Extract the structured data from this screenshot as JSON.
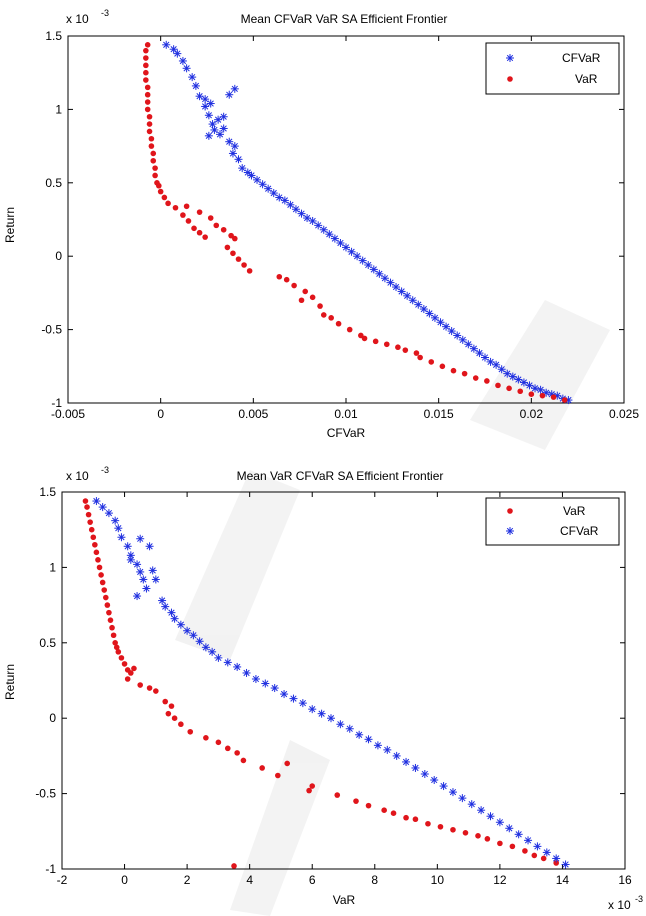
{
  "chart_data": [
    {
      "type": "scatter",
      "title": "Mean CFVaR VaR  SA Efficient Frontier",
      "xlabel": "CFVaR",
      "ylabel": "Return",
      "y_exponent_label": "x 10",
      "y_exponent_power": "-3",
      "x_exponent_label": "",
      "x_exponent_power": "",
      "xlim": [
        -0.005,
        0.025
      ],
      "ylim": [
        -1,
        1.5
      ],
      "xticks": [
        -0.005,
        0,
        0.005,
        0.01,
        0.015,
        0.02,
        0.025
      ],
      "xtick_labels": [
        "-0.005",
        "0",
        "0.005",
        "0.01",
        "0.015",
        "0.02",
        "0.025"
      ],
      "yticks": [
        -1,
        -0.5,
        0,
        0.5,
        1,
        1.5
      ],
      "ytick_labels": [
        "-1",
        "-0.5",
        "0",
        "0.5",
        "1",
        "1.5"
      ],
      "grid": false,
      "legend_position": "top-right",
      "series": [
        {
          "name": "CFVaR",
          "marker": "star",
          "color": "#1f2fe0",
          "x": [
            0.0003,
            0.0007,
            0.0009,
            0.0012,
            0.0014,
            0.0017,
            0.0019,
            0.0021,
            0.0024,
            0.0026,
            0.0028,
            0.0029,
            0.0026,
            0.0024,
            0.0027,
            0.0031,
            0.0034,
            0.0037,
            0.004,
            0.0032,
            0.0034,
            0.0037,
            0.004,
            0.0039,
            0.0042,
            0.0044,
            0.0047,
            0.0049,
            0.0052,
            0.0055,
            0.0058,
            0.0061,
            0.0064,
            0.0067,
            0.007,
            0.0073,
            0.0076,
            0.0079,
            0.0082,
            0.0085,
            0.0088,
            0.0091,
            0.0094,
            0.0097,
            0.01,
            0.0103,
            0.0106,
            0.0109,
            0.0112,
            0.0115,
            0.0118,
            0.0121,
            0.0124,
            0.0127,
            0.013,
            0.0133,
            0.0136,
            0.0139,
            0.0142,
            0.0145,
            0.0148,
            0.0151,
            0.0154,
            0.0157,
            0.016,
            0.0163,
            0.0166,
            0.0169,
            0.0172,
            0.0175,
            0.0178,
            0.0181,
            0.0184,
            0.0187,
            0.019,
            0.0193,
            0.0196,
            0.0199,
            0.0202,
            0.0205,
            0.0208,
            0.0211,
            0.0214,
            0.0217,
            0.022
          ],
          "y": [
            1.44,
            1.41,
            1.38,
            1.33,
            1.28,
            1.22,
            1.16,
            1.09,
            1.02,
            0.96,
            0.9,
            0.86,
            0.82,
            1.07,
            1.04,
            0.93,
            0.95,
            1.1,
            1.14,
            0.83,
            0.87,
            0.78,
            0.75,
            0.7,
            0.66,
            0.6,
            0.57,
            0.55,
            0.52,
            0.49,
            0.46,
            0.43,
            0.4,
            0.38,
            0.35,
            0.32,
            0.29,
            0.26,
            0.24,
            0.21,
            0.18,
            0.15,
            0.12,
            0.09,
            0.06,
            0.03,
            0.0,
            -0.03,
            -0.06,
            -0.09,
            -0.12,
            -0.15,
            -0.18,
            -0.21,
            -0.24,
            -0.27,
            -0.3,
            -0.33,
            -0.36,
            -0.39,
            -0.42,
            -0.45,
            -0.48,
            -0.51,
            -0.54,
            -0.57,
            -0.6,
            -0.63,
            -0.66,
            -0.69,
            -0.72,
            -0.74,
            -0.77,
            -0.8,
            -0.82,
            -0.84,
            -0.86,
            -0.88,
            -0.9,
            -0.91,
            -0.93,
            -0.94,
            -0.95,
            -0.97,
            -0.98
          ]
        },
        {
          "name": "VaR",
          "marker": "dot",
          "color": "#e0151b",
          "x": [
            -0.0007,
            -0.0008,
            -0.0008,
            -0.0008,
            -0.0008,
            -0.0008,
            -0.0007,
            -0.0007,
            -0.0007,
            -0.0007,
            -0.0006,
            -0.0006,
            -0.0006,
            -0.0005,
            -0.0005,
            -0.0004,
            -0.0004,
            -0.0003,
            -0.0003,
            -0.0002,
            -0.0001,
            0.0,
            0.0002,
            0.0004,
            0.0008,
            0.0012,
            0.0015,
            0.0018,
            0.0021,
            0.0024,
            0.0014,
            0.0021,
            0.0027,
            0.003,
            0.0034,
            0.0038,
            0.004,
            0.0036,
            0.0039,
            0.0042,
            0.0045,
            0.0048,
            0.0064,
            0.0068,
            0.0072,
            0.0078,
            0.0082,
            0.0076,
            0.0086,
            0.0088,
            0.0092,
            0.0096,
            0.0102,
            0.0108,
            0.011,
            0.0116,
            0.0122,
            0.0128,
            0.0132,
            0.0138,
            0.014,
            0.0146,
            0.0152,
            0.0158,
            0.0164,
            0.017,
            0.0176,
            0.0182,
            0.0188,
            0.0194,
            0.02,
            0.0206,
            0.0212,
            0.0218
          ],
          "y": [
            1.44,
            1.4,
            1.35,
            1.3,
            1.25,
            1.2,
            1.15,
            1.1,
            1.05,
            1.0,
            0.95,
            0.9,
            0.85,
            0.8,
            0.75,
            0.7,
            0.65,
            0.6,
            0.55,
            0.5,
            0.48,
            0.44,
            0.4,
            0.36,
            0.33,
            0.28,
            0.24,
            0.19,
            0.16,
            0.13,
            0.34,
            0.3,
            0.26,
            0.21,
            0.18,
            0.14,
            0.12,
            0.06,
            0.02,
            -0.02,
            -0.06,
            -0.1,
            -0.14,
            -0.16,
            -0.2,
            -0.24,
            -0.28,
            -0.3,
            -0.34,
            -0.4,
            -0.42,
            -0.46,
            -0.5,
            -0.54,
            -0.56,
            -0.58,
            -0.6,
            -0.62,
            -0.64,
            -0.66,
            -0.69,
            -0.72,
            -0.75,
            -0.78,
            -0.8,
            -0.83,
            -0.85,
            -0.88,
            -0.9,
            -0.92,
            -0.94,
            -0.95,
            -0.96,
            -0.98
          ]
        }
      ]
    },
    {
      "type": "scatter",
      "title": "Mean VaR CFVaR SA Efficient Frontier",
      "xlabel": "VaR",
      "ylabel": "Return",
      "y_exponent_label": "x 10",
      "y_exponent_power": "-3",
      "x_exponent_label": "x 10",
      "x_exponent_power": "-3",
      "xlim": [
        -2,
        16
      ],
      "ylim": [
        -1,
        1.5
      ],
      "xticks": [
        -2,
        0,
        2,
        4,
        6,
        8,
        10,
        12,
        14,
        16
      ],
      "xtick_labels": [
        "-2",
        "0",
        "2",
        "4",
        "6",
        "8",
        "10",
        "12",
        "14",
        "16"
      ],
      "yticks": [
        -1,
        -0.5,
        0,
        0.5,
        1,
        1.5
      ],
      "ytick_labels": [
        "-1",
        "-0.5",
        "0",
        "0.5",
        "1",
        "1.5"
      ],
      "grid": false,
      "legend_position": "top-right",
      "series": [
        {
          "name": "VaR",
          "marker": "dot",
          "color": "#e0151b",
          "x": [
            -1.25,
            -1.2,
            -1.15,
            -1.1,
            -1.05,
            -1.0,
            -0.95,
            -0.9,
            -0.85,
            -0.8,
            -0.75,
            -0.7,
            -0.65,
            -0.6,
            -0.55,
            -0.5,
            -0.45,
            -0.4,
            -0.35,
            -0.3,
            -0.25,
            -0.2,
            -0.1,
            0.0,
            0.1,
            0.2,
            0.3,
            0.1,
            0.5,
            0.8,
            1.0,
            1.3,
            1.5,
            1.4,
            1.6,
            1.8,
            2.1,
            2.6,
            3.0,
            3.3,
            3.6,
            3.8,
            4.4,
            4.9,
            5.2,
            6.0,
            5.9,
            6.8,
            7.4,
            7.8,
            8.3,
            8.6,
            9.0,
            9.3,
            9.7,
            10.1,
            10.5,
            10.9,
            11.3,
            11.6,
            12.0,
            12.4,
            12.8,
            13.1,
            13.4,
            13.8,
            3.5
          ],
          "y": [
            1.44,
            1.4,
            1.35,
            1.3,
            1.25,
            1.2,
            1.15,
            1.1,
            1.05,
            1.0,
            0.95,
            0.9,
            0.85,
            0.8,
            0.75,
            0.7,
            0.65,
            0.6,
            0.55,
            0.5,
            0.47,
            0.44,
            0.4,
            0.36,
            0.32,
            0.3,
            0.33,
            0.26,
            0.22,
            0.2,
            0.18,
            0.11,
            0.08,
            0.03,
            0.0,
            -0.04,
            -0.09,
            -0.13,
            -0.16,
            -0.2,
            -0.23,
            -0.28,
            -0.33,
            -0.38,
            -0.3,
            -0.45,
            -0.48,
            -0.51,
            -0.55,
            -0.58,
            -0.61,
            -0.63,
            -0.66,
            -0.67,
            -0.7,
            -0.72,
            -0.74,
            -0.76,
            -0.78,
            -0.8,
            -0.83,
            -0.85,
            -0.88,
            -0.91,
            -0.93,
            -0.96,
            -0.98
          ]
        },
        {
          "name": "CFVaR",
          "marker": "star",
          "color": "#1f2fe0",
          "x": [
            -0.9,
            -0.7,
            -0.5,
            -0.3,
            -0.2,
            -0.1,
            0.1,
            0.2,
            0.4,
            0.5,
            0.6,
            0.7,
            0.4,
            0.2,
            0.5,
            0.8,
            0.9,
            1.0,
            1.2,
            1.3,
            1.5,
            1.6,
            1.8,
            2.0,
            2.2,
            2.4,
            2.6,
            2.8,
            3.0,
            3.3,
            3.6,
            3.9,
            4.2,
            4.5,
            4.8,
            5.1,
            5.4,
            5.7,
            6.0,
            6.3,
            6.6,
            6.9,
            7.2,
            7.5,
            7.8,
            8.1,
            8.4,
            8.7,
            9.0,
            9.3,
            9.6,
            9.9,
            10.2,
            10.5,
            10.8,
            11.1,
            11.4,
            11.7,
            12.0,
            12.3,
            12.6,
            12.9,
            13.2,
            13.5,
            13.8,
            14.1
          ],
          "y": [
            1.44,
            1.4,
            1.36,
            1.31,
            1.26,
            1.2,
            1.14,
            1.08,
            1.02,
            0.97,
            0.92,
            0.86,
            0.81,
            1.05,
            1.19,
            1.14,
            0.98,
            0.92,
            0.78,
            0.74,
            0.7,
            0.66,
            0.62,
            0.58,
            0.55,
            0.51,
            0.47,
            0.44,
            0.4,
            0.37,
            0.34,
            0.3,
            0.26,
            0.23,
            0.2,
            0.16,
            0.13,
            0.1,
            0.06,
            0.03,
            0.0,
            -0.04,
            -0.07,
            -0.11,
            -0.14,
            -0.18,
            -0.21,
            -0.25,
            -0.29,
            -0.33,
            -0.37,
            -0.41,
            -0.45,
            -0.49,
            -0.53,
            -0.57,
            -0.61,
            -0.65,
            -0.69,
            -0.73,
            -0.77,
            -0.81,
            -0.85,
            -0.89,
            -0.93,
            -0.97
          ]
        }
      ]
    }
  ]
}
